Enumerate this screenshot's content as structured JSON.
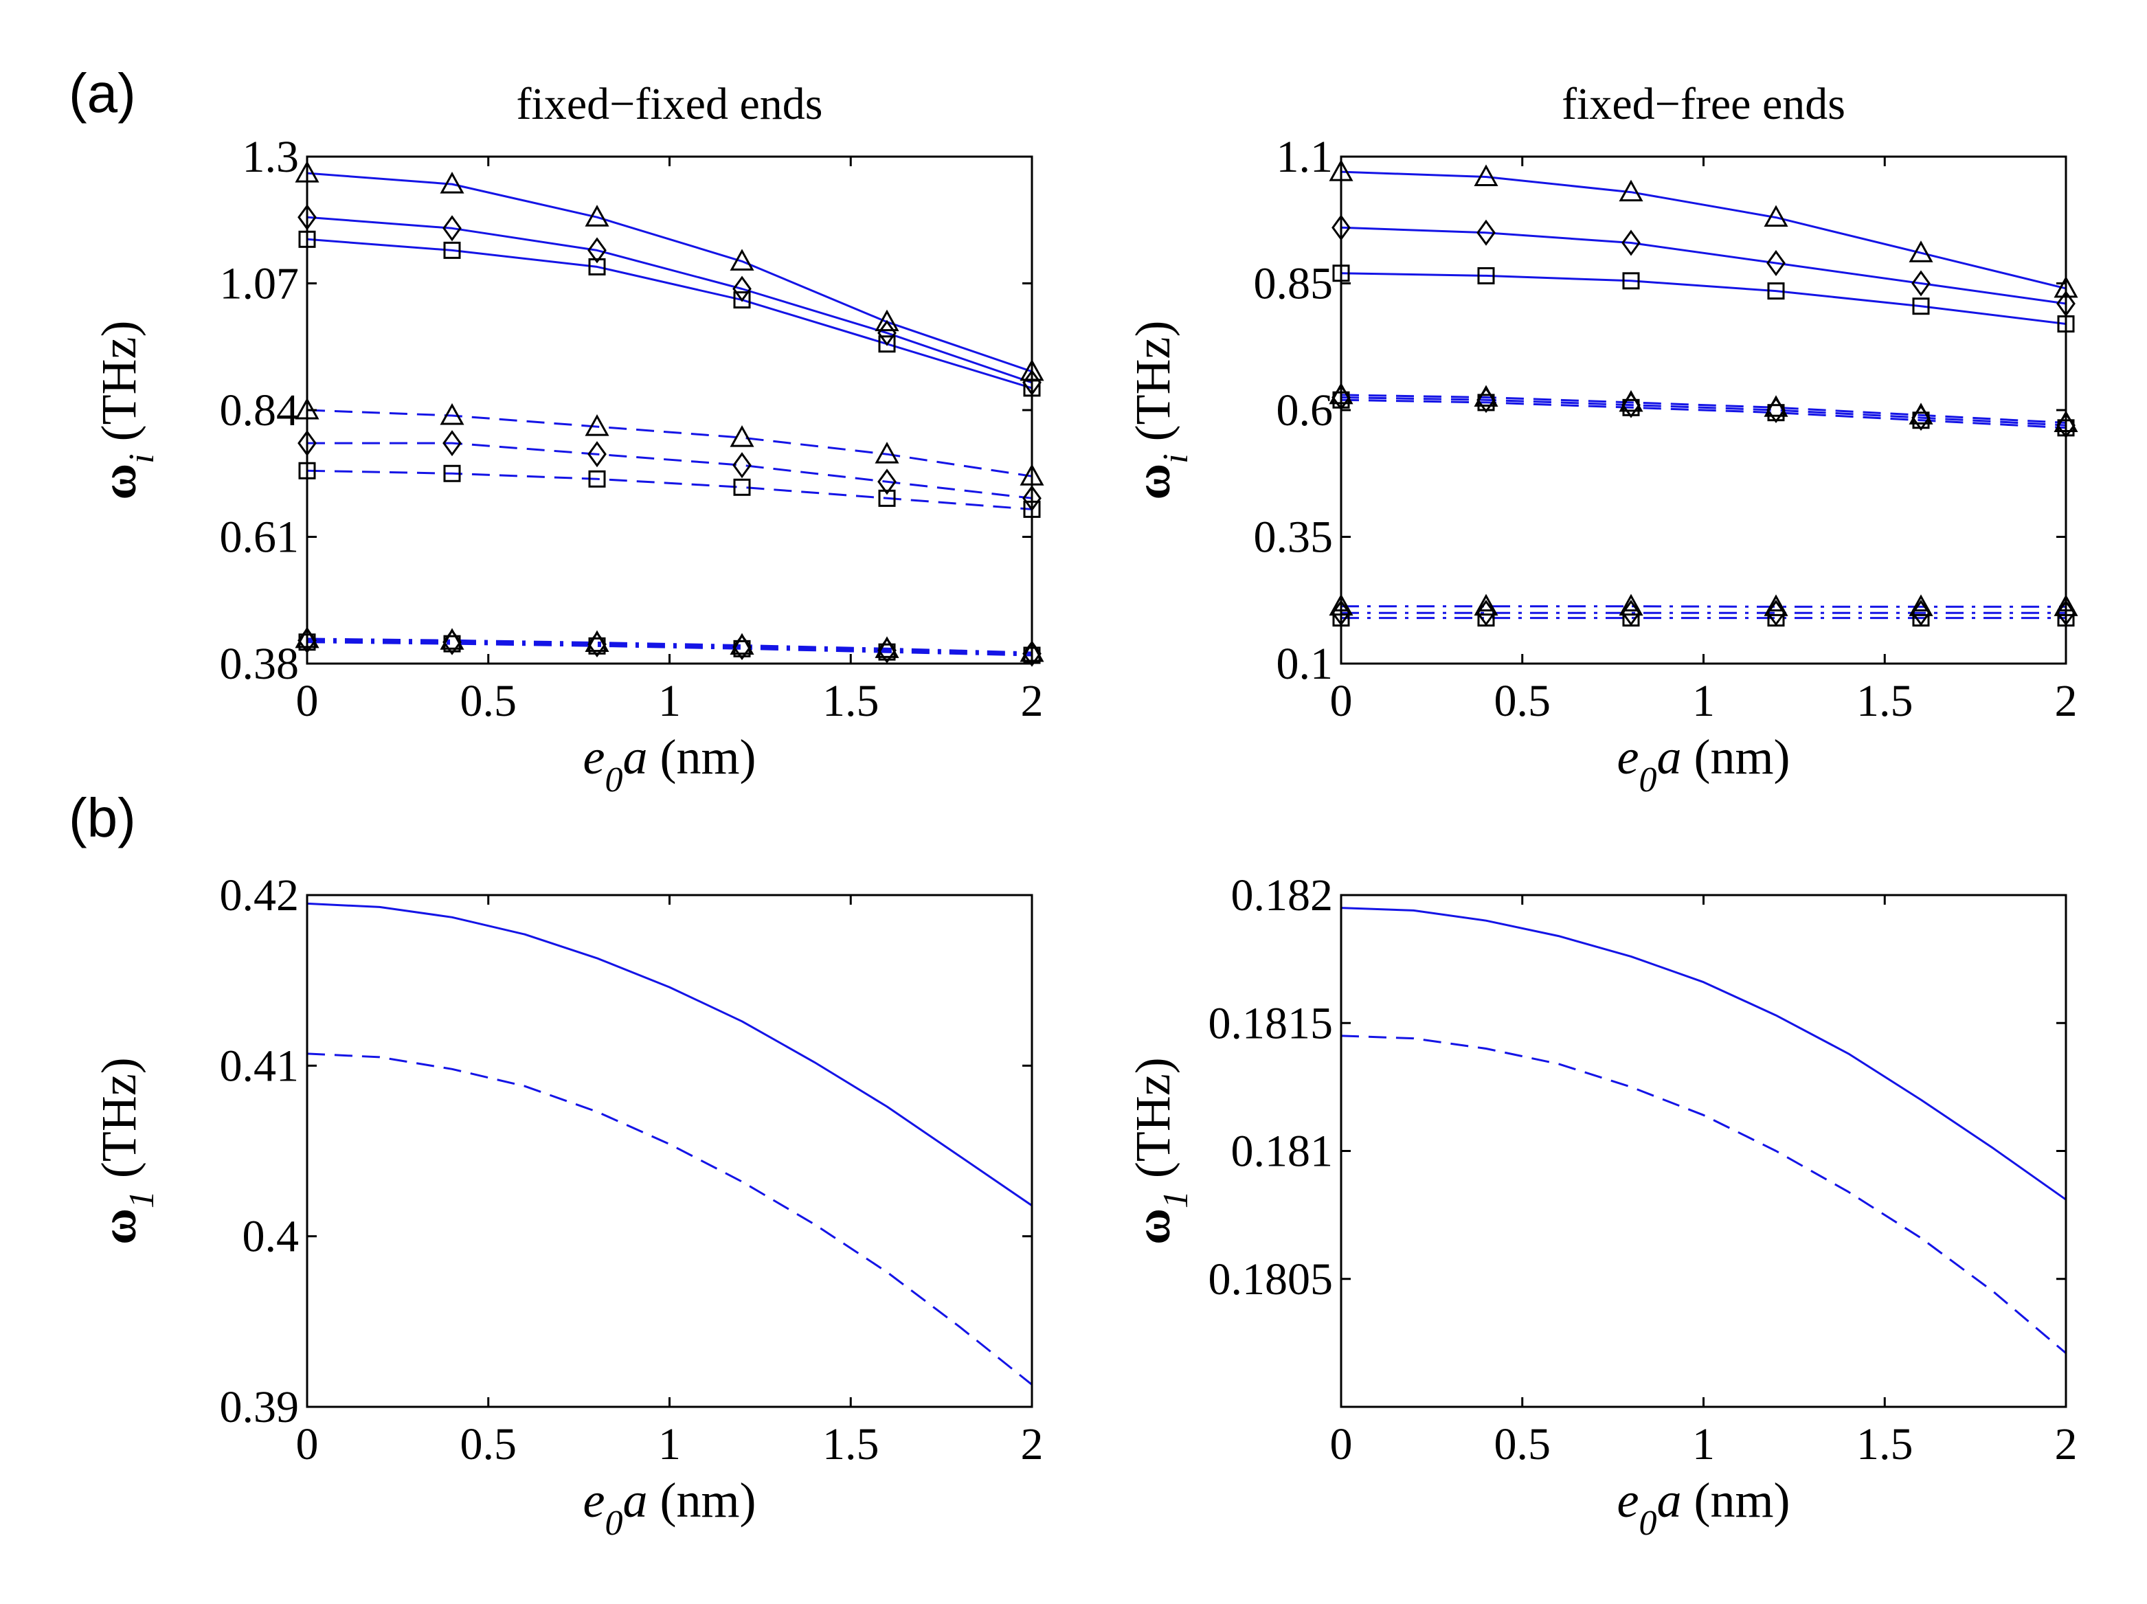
{
  "figure": {
    "panel_a_label": "(a)",
    "panel_b_label": "(b)",
    "colors": {
      "line": "#1414e6",
      "marker": "#000000",
      "axis": "#000000"
    }
  },
  "chart_data": [
    {
      "id": "a-left",
      "type": "line",
      "title": "fixed−fixed ends",
      "xlabel": {
        "main": "e",
        "sub": "0",
        "tail": "a (nm)"
      },
      "ylabel": {
        "main": "ω",
        "sub": "i",
        "tail": " (THz)"
      },
      "xlim": [
        0,
        2
      ],
      "ylim": [
        0.38,
        1.3
      ],
      "xticks": [
        0,
        0.5,
        1,
        1.5,
        2
      ],
      "xtick_labels": [
        "0",
        "0.5",
        "1",
        "1.5",
        "2"
      ],
      "yticks": [
        0.38,
        0.61,
        0.84,
        1.07,
        1.3
      ],
      "ytick_labels": [
        "0.38",
        "0.61",
        "0.84",
        "1.07",
        "1.3"
      ],
      "marker_x": [
        0,
        0.4,
        0.8,
        1.2,
        1.6,
        2
      ],
      "series": [
        {
          "name": "solid-triangle",
          "style": "solid",
          "marker": "triangle",
          "values": [
            1.27,
            1.25,
            1.19,
            1.11,
            1.0,
            0.91
          ]
        },
        {
          "name": "solid-diamond",
          "style": "solid",
          "marker": "diamond",
          "values": [
            1.19,
            1.17,
            1.13,
            1.06,
            0.98,
            0.89
          ]
        },
        {
          "name": "solid-square",
          "style": "solid",
          "marker": "square",
          "values": [
            1.15,
            1.13,
            1.1,
            1.04,
            0.96,
            0.88
          ]
        },
        {
          "name": "dash-triangle",
          "style": "dash",
          "marker": "triangle",
          "values": [
            0.84,
            0.83,
            0.81,
            0.79,
            0.76,
            0.72
          ]
        },
        {
          "name": "dash-diamond",
          "style": "dash",
          "marker": "diamond",
          "values": [
            0.78,
            0.78,
            0.76,
            0.74,
            0.71,
            0.68
          ]
        },
        {
          "name": "dash-square",
          "style": "dash",
          "marker": "square",
          "values": [
            0.73,
            0.725,
            0.715,
            0.7,
            0.68,
            0.66
          ]
        },
        {
          "name": "dashdot-triangle",
          "style": "dashdot",
          "marker": "triangle",
          "values": [
            0.425,
            0.422,
            0.418,
            0.413,
            0.407,
            0.4
          ]
        },
        {
          "name": "dashdot-diamond",
          "style": "dashdot",
          "marker": "diamond",
          "values": [
            0.422,
            0.419,
            0.415,
            0.41,
            0.404,
            0.398
          ]
        },
        {
          "name": "dashdot-square",
          "style": "dashdot",
          "marker": "square",
          "values": [
            0.419,
            0.416,
            0.412,
            0.407,
            0.401,
            0.395
          ]
        }
      ]
    },
    {
      "id": "a-right",
      "type": "line",
      "title": "fixed−free ends",
      "xlabel": {
        "main": "e",
        "sub": "0",
        "tail": "a (nm)"
      },
      "ylabel": {
        "main": "ω",
        "sub": "i",
        "tail": " (THz)"
      },
      "xlim": [
        0,
        2
      ],
      "ylim": [
        0.1,
        1.1
      ],
      "xticks": [
        0,
        0.5,
        1,
        1.5,
        2
      ],
      "xtick_labels": [
        "0",
        "0.5",
        "1",
        "1.5",
        "2"
      ],
      "yticks": [
        0.1,
        0.35,
        0.6,
        0.85,
        1.1
      ],
      "ytick_labels": [
        "0.1",
        "0.35",
        "0.6",
        "0.85",
        "1.1"
      ],
      "marker_x": [
        0,
        0.4,
        0.8,
        1.2,
        1.6,
        2
      ],
      "series": [
        {
          "name": "solid-triangle",
          "style": "solid",
          "marker": "triangle",
          "values": [
            1.07,
            1.06,
            1.03,
            0.98,
            0.91,
            0.84
          ]
        },
        {
          "name": "solid-diamond",
          "style": "solid",
          "marker": "diamond",
          "values": [
            0.96,
            0.95,
            0.93,
            0.89,
            0.85,
            0.81
          ]
        },
        {
          "name": "solid-square",
          "style": "solid",
          "marker": "square",
          "values": [
            0.87,
            0.865,
            0.855,
            0.835,
            0.805,
            0.77
          ]
        },
        {
          "name": "dash-triangle",
          "style": "dash",
          "marker": "triangle",
          "values": [
            0.63,
            0.625,
            0.615,
            0.605,
            0.59,
            0.575
          ]
        },
        {
          "name": "dash-diamond",
          "style": "dash",
          "marker": "diamond",
          "values": [
            0.625,
            0.62,
            0.61,
            0.6,
            0.585,
            0.57
          ]
        },
        {
          "name": "dash-square",
          "style": "dash",
          "marker": "square",
          "values": [
            0.62,
            0.615,
            0.605,
            0.595,
            0.58,
            0.565
          ]
        },
        {
          "name": "dashdot-triangle",
          "style": "dashdot",
          "marker": "triangle",
          "values": [
            0.213,
            0.213,
            0.213,
            0.212,
            0.212,
            0.212
          ]
        },
        {
          "name": "dashdot-diamond",
          "style": "dashdot",
          "marker": "diamond",
          "values": [
            0.2,
            0.2,
            0.2,
            0.2,
            0.2,
            0.2
          ]
        },
        {
          "name": "dashdot-square",
          "style": "dashdot",
          "marker": "square",
          "values": [
            0.19,
            0.19,
            0.19,
            0.19,
            0.19,
            0.19
          ]
        }
      ]
    },
    {
      "id": "b-left",
      "type": "line",
      "title": "",
      "xlabel": {
        "main": "e",
        "sub": "0",
        "tail": "a (nm)"
      },
      "ylabel": {
        "main": "ω",
        "sub": "1",
        "tail": " (THz)"
      },
      "xlim": [
        0,
        2
      ],
      "ylim": [
        0.39,
        0.42
      ],
      "xticks": [
        0,
        0.5,
        1,
        1.5,
        2
      ],
      "xtick_labels": [
        "0",
        "0.5",
        "1",
        "1.5",
        "2"
      ],
      "yticks": [
        0.39,
        0.4,
        0.41,
        0.42
      ],
      "ytick_labels": [
        "0.39",
        "0.4",
        "0.41",
        "0.42"
      ],
      "curve_x": [
        0,
        0.2,
        0.4,
        0.6,
        0.8,
        1.0,
        1.2,
        1.4,
        1.6,
        1.8,
        2.0
      ],
      "series": [
        {
          "name": "solid",
          "style": "solid",
          "values": [
            0.4195,
            0.4193,
            0.4187,
            0.4177,
            0.4163,
            0.4146,
            0.4126,
            0.4102,
            0.4076,
            0.4047,
            0.4018
          ]
        },
        {
          "name": "dash",
          "style": "dash",
          "values": [
            0.4107,
            0.4105,
            0.4098,
            0.4088,
            0.4073,
            0.4054,
            0.4032,
            0.4007,
            0.3979,
            0.3947,
            0.3913
          ]
        }
      ]
    },
    {
      "id": "b-right",
      "type": "line",
      "title": "",
      "xlabel": {
        "main": "e",
        "sub": "0",
        "tail": "a (nm)"
      },
      "ylabel": {
        "main": "ω",
        "sub": "1",
        "tail": " (THz)"
      },
      "xlim": [
        0,
        2
      ],
      "ylim": [
        0.18,
        0.182
      ],
      "xticks": [
        0,
        0.5,
        1,
        1.5,
        2
      ],
      "xtick_labels": [
        "0",
        "0.5",
        "1",
        "1.5",
        "2"
      ],
      "yticks": [
        0.1805,
        0.181,
        0.1815,
        0.182
      ],
      "ytick_labels": [
        "0.1805",
        "0.181",
        "0.1815",
        "0.182"
      ],
      "curve_x": [
        0,
        0.2,
        0.4,
        0.6,
        0.8,
        1.0,
        1.2,
        1.4,
        1.6,
        1.8,
        2.0
      ],
      "series": [
        {
          "name": "solid",
          "style": "solid",
          "values": [
            0.18195,
            0.18194,
            0.1819,
            0.18184,
            0.18176,
            0.18166,
            0.18153,
            0.18138,
            0.1812,
            0.18101,
            0.18081
          ]
        },
        {
          "name": "dash",
          "style": "dash",
          "values": [
            0.18145,
            0.18144,
            0.1814,
            0.18134,
            0.18125,
            0.18114,
            0.181,
            0.18084,
            0.18066,
            0.18045,
            0.18021
          ]
        }
      ]
    }
  ]
}
